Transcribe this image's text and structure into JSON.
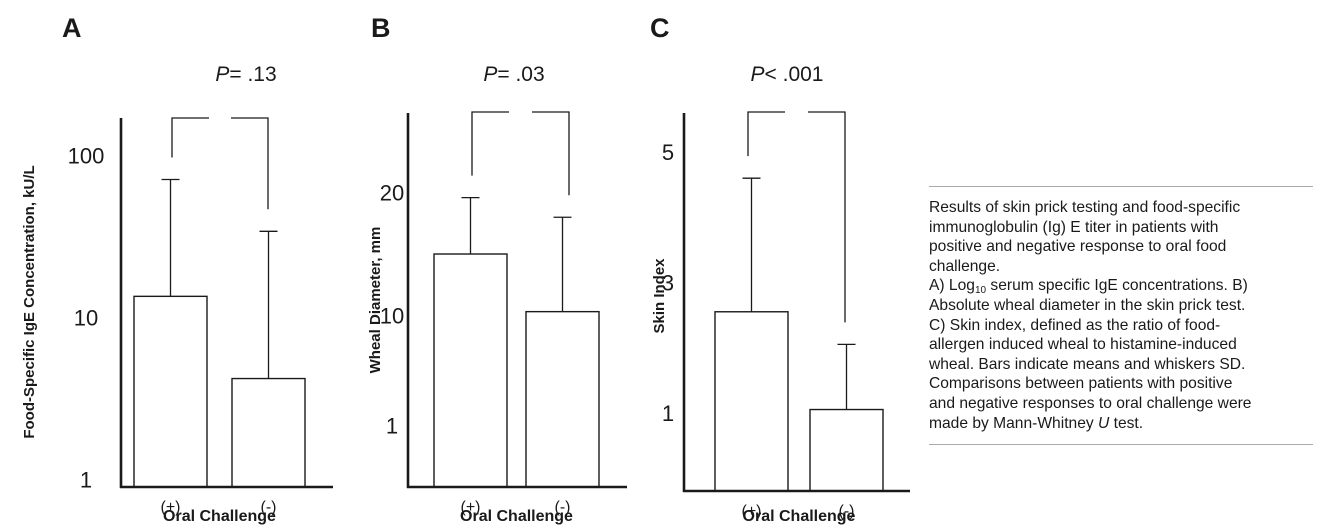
{
  "chart_data": [
    {
      "panel": "A",
      "type": "bar",
      "pvalue": {
        "italic": "P",
        "rest": "= .13"
      },
      "ylabel": "Food-Specific IgE Concentration, kU/L",
      "xlabel": "Oral Challenge",
      "categories": [
        "(+)",
        "(-)"
      ],
      "yscale": "log",
      "ylim": [
        0.9,
        170
      ],
      "yticks": [
        {
          "value": 1,
          "label": "1"
        },
        {
          "value": 10,
          "label": "10"
        },
        {
          "value": 100,
          "label": "100"
        }
      ],
      "series": [
        {
          "values": [
            13.5,
            4.2
          ],
          "sd_upper": [
            71,
            34
          ]
        }
      ]
    },
    {
      "panel": "B",
      "type": "bar",
      "pvalue": {
        "italic": "P",
        "rest": "= .03"
      },
      "ylabel": "Wheal Diameter, mm",
      "xlabel": "Oral Challenge",
      "categories": [
        "(+)",
        "(-)"
      ],
      "yscale": "linear",
      "ylim": [
        -4,
        26.5
      ],
      "yticks": [
        {
          "value": 1,
          "label": "1"
        },
        {
          "value": 10,
          "label": "10"
        },
        {
          "value": 20,
          "label": "20"
        }
      ],
      "series": [
        {
          "values": [
            15,
            10.3
          ],
          "sd_upper": [
            19.6,
            18
          ]
        }
      ]
    },
    {
      "panel": "C",
      "type": "bar",
      "pvalue": {
        "italic": "P",
        "rest": "< .001"
      },
      "ylabel": "Skin Index",
      "xlabel": "Oral Challenge",
      "categories": [
        "(+)",
        "(-)"
      ],
      "yscale": "linear",
      "ylim": [
        -0.2,
        5.6
      ],
      "yticks": [
        {
          "value": 1,
          "label": "1"
        },
        {
          "value": 3,
          "label": "3"
        },
        {
          "value": 5,
          "label": "5"
        }
      ],
      "series": [
        {
          "values": [
            2.55,
            1.05
          ],
          "sd_upper": [
            4.6,
            2.05
          ]
        }
      ]
    }
  ],
  "caption": {
    "lines": [
      "Results of skin prick testing and food-specific",
      "immunoglobulin (Ig) E titer in patients with",
      "positive and negative response to oral food",
      "challenge."
    ],
    "a_prefix": "A) Log",
    "a_sub": "10",
    "a_suffix": " serum specific IgE concentrations. B)",
    "lines2": [
      "Absolute wheal diameter in the skin prick test.",
      "C) Skin index, defined as the ratio of food-",
      "allergen induced wheal to histamine-induced",
      "wheal. Bars indicate means and whiskers SD.",
      "Comparisons between patients with positive",
      "and negative responses to oral challenge were"
    ],
    "last_prefix": "made by Mann-Whitney ",
    "last_italic": "U",
    "last_suffix": " test."
  }
}
